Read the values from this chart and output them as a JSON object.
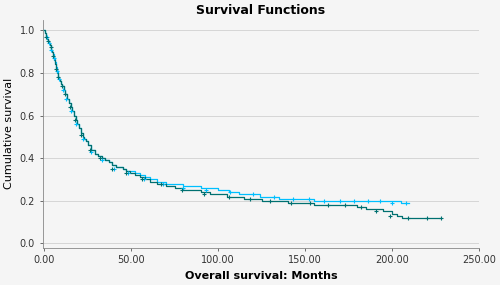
{
  "title": "Survival Functions",
  "xlabel": "Overall survival: Months",
  "ylabel": "Cumulative survival",
  "xlim": [
    -1,
    250
  ],
  "ylim": [
    -0.02,
    1.05
  ],
  "xticks": [
    0,
    50,
    100,
    150,
    200,
    250
  ],
  "xtick_labels": [
    "0.00",
    "50.00",
    "100.00",
    "150.00",
    "200.00",
    "250.00"
  ],
  "yticks": [
    0.0,
    0.2,
    0.4,
    0.6,
    0.8,
    1.0
  ],
  "ytick_labels": [
    "0.0",
    "0.2",
    "0.4",
    "0.6",
    "0.8",
    "1.0"
  ],
  "curve1_color": "#00BFFF",
  "curve2_color": "#007070",
  "background_color": "#f5f5f5",
  "grid_color": "#d0d0d0",
  "title_fontsize": 9,
  "axis_label_fontsize": 8,
  "tick_fontsize": 7,
  "curve1_step_x": [
    0,
    0.3,
    0.6,
    1.0,
    1.5,
    2.0,
    2.5,
    3.0,
    3.5,
    4.0,
    4.5,
    5.0,
    5.5,
    6.0,
    6.5,
    7.0,
    7.5,
    8.0,
    8.5,
    9.0,
    9.5,
    10.0,
    11.0,
    12.0,
    13.0,
    14.0,
    15.0,
    16.0,
    17.0,
    18.0,
    19.0,
    20.0,
    21.0,
    22.0,
    23.0,
    24.0,
    25.0,
    27.0,
    29.0,
    31.0,
    33.0,
    35.0,
    37.0,
    39.0,
    41.0,
    43.0,
    45.0,
    47.0,
    49.0,
    52.0,
    55.0,
    58.0,
    61.0,
    65.0,
    70.0,
    75.0,
    80.0,
    85.0,
    90.0,
    95.0,
    100.0,
    106.0,
    112.0,
    118.0,
    124.0,
    130.0,
    135.0,
    140.0,
    145.0,
    150.0,
    155.0,
    160.0,
    163.0,
    166.0,
    169.0,
    172.0,
    175.0,
    178.0,
    181.0,
    184.0,
    187.0,
    190.0,
    192.0,
    194.0,
    196.0,
    198.0,
    200.0,
    205.0,
    210.0
  ],
  "curve1_step_y": [
    1.0,
    0.99,
    0.98,
    0.97,
    0.96,
    0.95,
    0.94,
    0.93,
    0.92,
    0.91,
    0.9,
    0.89,
    0.87,
    0.85,
    0.83,
    0.81,
    0.79,
    0.78,
    0.77,
    0.76,
    0.75,
    0.74,
    0.72,
    0.7,
    0.68,
    0.66,
    0.64,
    0.62,
    0.6,
    0.58,
    0.56,
    0.54,
    0.52,
    0.5,
    0.49,
    0.48,
    0.46,
    0.44,
    0.42,
    0.41,
    0.4,
    0.39,
    0.38,
    0.37,
    0.36,
    0.36,
    0.35,
    0.34,
    0.34,
    0.33,
    0.32,
    0.31,
    0.3,
    0.29,
    0.28,
    0.28,
    0.27,
    0.27,
    0.26,
    0.26,
    0.25,
    0.24,
    0.23,
    0.23,
    0.22,
    0.22,
    0.21,
    0.21,
    0.21,
    0.21,
    0.2,
    0.2,
    0.2,
    0.2,
    0.2,
    0.2,
    0.2,
    0.2,
    0.2,
    0.2,
    0.2,
    0.2,
    0.2,
    0.2,
    0.2,
    0.2,
    0.2,
    0.19,
    0.19
  ],
  "curve2_step_x": [
    0,
    0.3,
    0.6,
    1.0,
    1.5,
    2.0,
    2.5,
    3.0,
    3.5,
    4.0,
    4.5,
    5.0,
    5.5,
    6.0,
    6.5,
    7.0,
    7.5,
    8.0,
    8.5,
    9.0,
    9.5,
    10.0,
    11.0,
    12.0,
    13.0,
    14.0,
    15.0,
    16.0,
    17.0,
    18.0,
    19.0,
    20.0,
    21.0,
    22.0,
    23.0,
    24.0,
    25.0,
    27.0,
    29.0,
    31.0,
    33.0,
    35.0,
    37.0,
    39.0,
    41.0,
    43.0,
    45.0,
    47.0,
    49.0,
    52.0,
    55.0,
    58.0,
    61.0,
    65.0,
    70.0,
    75.0,
    80.0,
    85.0,
    90.0,
    95.0,
    100.0,
    105.0,
    110.0,
    115.0,
    120.0,
    125.0,
    130.0,
    135.0,
    140.0,
    145.0,
    150.0,
    155.0,
    160.0,
    165.0,
    170.0,
    175.0,
    180.0,
    185.0,
    190.0,
    195.0,
    200.0,
    203.0,
    206.0,
    209.0,
    215.0,
    222.0,
    228.0
  ],
  "curve2_step_y": [
    1.0,
    0.99,
    0.98,
    0.97,
    0.96,
    0.95,
    0.94,
    0.93,
    0.92,
    0.91,
    0.9,
    0.88,
    0.86,
    0.84,
    0.82,
    0.8,
    0.79,
    0.78,
    0.77,
    0.76,
    0.75,
    0.74,
    0.72,
    0.7,
    0.68,
    0.66,
    0.64,
    0.62,
    0.6,
    0.58,
    0.56,
    0.54,
    0.52,
    0.5,
    0.49,
    0.48,
    0.46,
    0.44,
    0.42,
    0.41,
    0.4,
    0.39,
    0.38,
    0.37,
    0.36,
    0.36,
    0.35,
    0.34,
    0.33,
    0.32,
    0.31,
    0.3,
    0.29,
    0.28,
    0.27,
    0.26,
    0.25,
    0.25,
    0.24,
    0.23,
    0.23,
    0.22,
    0.22,
    0.21,
    0.21,
    0.2,
    0.2,
    0.2,
    0.19,
    0.19,
    0.19,
    0.18,
    0.18,
    0.18,
    0.18,
    0.18,
    0.17,
    0.16,
    0.16,
    0.15,
    0.14,
    0.13,
    0.12,
    0.12,
    0.12,
    0.12,
    0.12
  ],
  "censor1_x": [
    1.2,
    2.5,
    4.0,
    5.5,
    7.0,
    8.5,
    10.5,
    12.5,
    15.0,
    18.0,
    22.0,
    27.0,
    33.0,
    40.0,
    48.0,
    57.0,
    68.0,
    80.0,
    93.0,
    107.0,
    120.0,
    132.0,
    143.0,
    152.0,
    161.0,
    170.0,
    178.0,
    186.0,
    193.0,
    200.0,
    208.0
  ],
  "censor1_y": [
    0.97,
    0.94,
    0.91,
    0.87,
    0.81,
    0.77,
    0.72,
    0.68,
    0.62,
    0.56,
    0.49,
    0.43,
    0.39,
    0.35,
    0.33,
    0.3,
    0.28,
    0.26,
    0.25,
    0.24,
    0.23,
    0.22,
    0.21,
    0.21,
    0.2,
    0.2,
    0.2,
    0.2,
    0.2,
    0.19,
    0.19
  ],
  "censor2_x": [
    1.0,
    2.2,
    3.5,
    5.0,
    6.5,
    8.0,
    10.0,
    12.0,
    14.5,
    17.5,
    21.0,
    26.0,
    32.0,
    39.0,
    47.0,
    56.0,
    67.0,
    79.0,
    92.0,
    106.0,
    118.0,
    130.0,
    142.0,
    153.0,
    163.0,
    173.0,
    182.0,
    191.0,
    199.0,
    209.0,
    220.0,
    228.0
  ],
  "censor2_y": [
    0.97,
    0.95,
    0.92,
    0.88,
    0.82,
    0.78,
    0.74,
    0.7,
    0.64,
    0.58,
    0.51,
    0.44,
    0.4,
    0.35,
    0.33,
    0.3,
    0.28,
    0.25,
    0.23,
    0.22,
    0.21,
    0.2,
    0.19,
    0.19,
    0.18,
    0.18,
    0.17,
    0.15,
    0.13,
    0.12,
    0.12,
    0.12
  ]
}
